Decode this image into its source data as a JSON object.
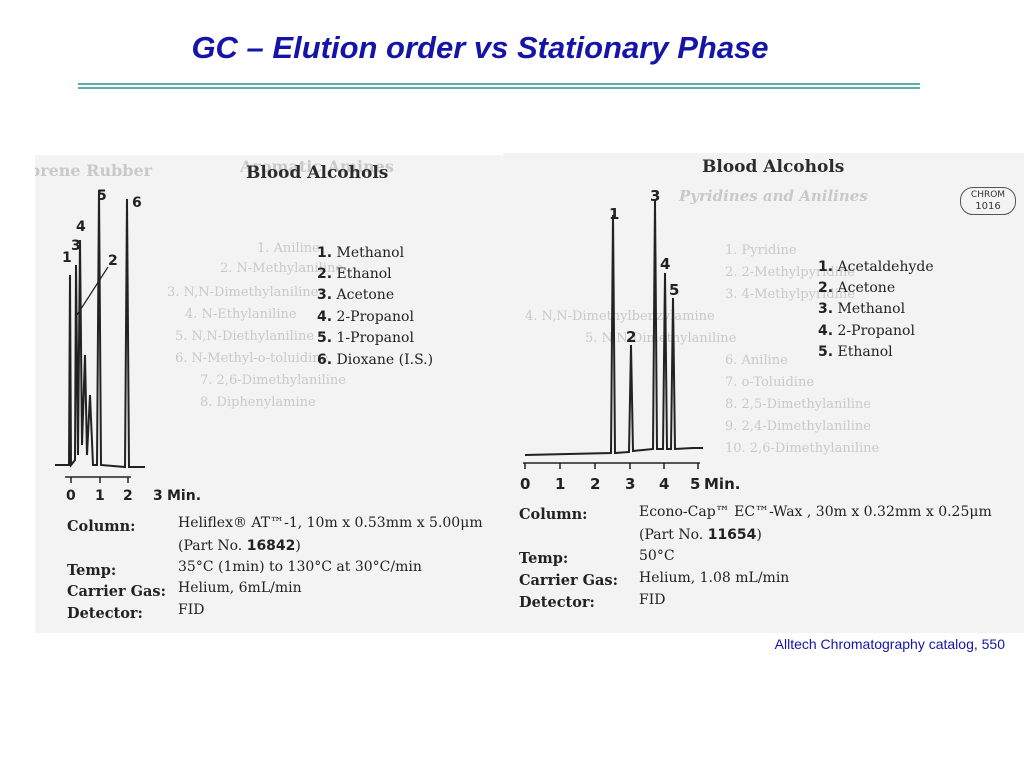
{
  "slide": {
    "title": "GC – Elution order vs Stationary Phase",
    "citation": "Alltech Chromatography catalog, 550",
    "rule_color": "#5ab0a8",
    "title_color": "#1414a8"
  },
  "left_panel": {
    "title": "Blood Alcohols",
    "axis_ticks": [
      "0",
      "1",
      "2",
      "3"
    ],
    "axis_unit": "Min.",
    "peak_numbers": [
      "1",
      "2",
      "3",
      "4",
      "5",
      "6"
    ],
    "legend": [
      {
        "num": "1.",
        "name": "Methanol"
      },
      {
        "num": "2.",
        "name": "Ethanol"
      },
      {
        "num": "3.",
        "name": "Acetone"
      },
      {
        "num": "4.",
        "name": "2-Propanol"
      },
      {
        "num": "5.",
        "name": "1-Propanol"
      },
      {
        "num": "6.",
        "name": "Dioxane (I.S.)"
      }
    ],
    "conditions": [
      {
        "label": "Column:",
        "value": "Heliflex® AT™-1, 10m x 0.53mm x 5.00μm",
        "value2_pre": "(Part No. ",
        "value2_num": "16842",
        "value2_post": ")"
      },
      {
        "label": "Temp:",
        "value": "35°C (1min) to 130°C at 30°C/min"
      },
      {
        "label": "Carrier Gas:",
        "value": "Helium, 6mL/min"
      },
      {
        "label": "Detector:",
        "value": "FID"
      }
    ]
  },
  "right_panel": {
    "title": "Blood Alcohols",
    "badge_line1": "CHROM",
    "badge_line2": "1016",
    "axis_ticks": [
      "0",
      "1",
      "2",
      "3",
      "4",
      "5"
    ],
    "axis_unit": "Min.",
    "peak_numbers": [
      "1",
      "2",
      "3",
      "4",
      "5"
    ],
    "legend": [
      {
        "num": "1.",
        "name": "Acetaldehyde"
      },
      {
        "num": "2.",
        "name": "Acetone"
      },
      {
        "num": "3.",
        "name": "Methanol"
      },
      {
        "num": "4.",
        "name": "2-Propanol"
      },
      {
        "num": "5.",
        "name": "Ethanol"
      }
    ],
    "conditions": [
      {
        "label": "Column:",
        "value": "Econo-Cap™ EC™-Wax , 30m x 0.32mm x 0.25μm",
        "value2_pre": "(Part No. ",
        "value2_num": "11654",
        "value2_post": ")"
      },
      {
        "label": "Temp:",
        "value": "50°C"
      },
      {
        "label": "Carrier Gas:",
        "value": "Helium, 1.08 mL/min"
      },
      {
        "label": "Detector:",
        "value": "FID"
      }
    ]
  },
  "ghost_text": {
    "left_header": "prene Rubber",
    "left_header2": "Aromatic Amines",
    "left_list": [
      "1. Aniline",
      "2. N-Methylaniline",
      "3. N,N-Dimethylaniline",
      "4. N-Ethylaniline",
      "5. N,N-Diethylaniline",
      "6. N-Methyl-o-toluidine",
      "7. 2,6-Dimethylaniline",
      "8. Diphenylamine"
    ],
    "right_header": "Pyridines and Anilines",
    "right_list": [
      "1. Pyridine",
      "2. 2-Methylpyridine",
      "3. 4-Methylpyridine",
      "4. N,N-Dimethylbenzylamine",
      "5. N,N-Dimethylaniline",
      "6. Aniline",
      "7. o-Toluidine",
      "8. 2,5-Dimethylaniline",
      "9. 2,4-Dimethylaniline",
      "10. 2,6-Dimethylaniline"
    ]
  }
}
